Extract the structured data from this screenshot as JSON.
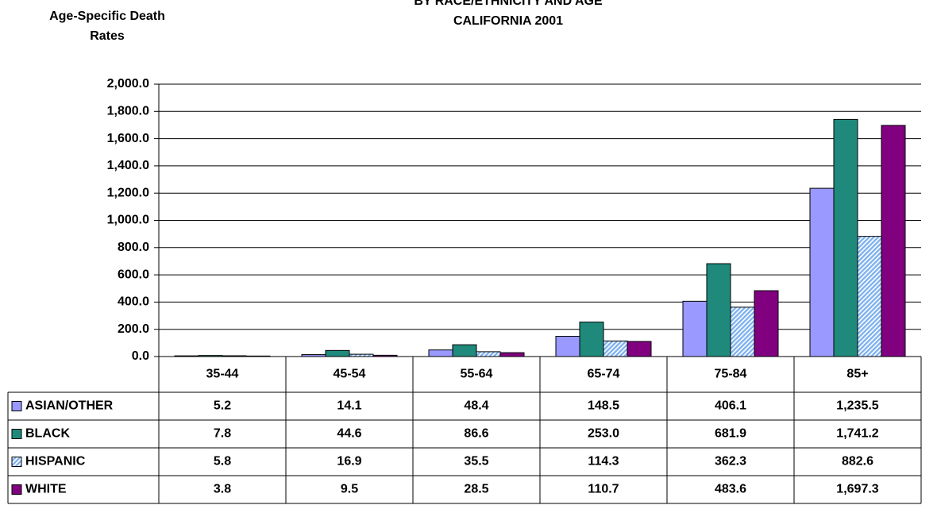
{
  "chart_data": {
    "type": "bar",
    "title": "BY RACE/ETHNICITY AND AGE",
    "subtitle": "CALIFORNIA 2001",
    "y_axis_label": "Age-Specific Death Rates",
    "categories": [
      "35-44",
      "45-54",
      "55-64",
      "65-74",
      "75-84",
      "85+"
    ],
    "series": [
      {
        "name": "ASIAN/OTHER",
        "color": "#9999ff",
        "values": [
          5.2,
          14.1,
          48.4,
          148.5,
          406.1,
          1235.5
        ],
        "value_labels": [
          "5.2",
          "14.1",
          "48.4",
          "148.5",
          "406.1",
          "1,235.5"
        ]
      },
      {
        "name": "BLACK",
        "color": "#1f8a7c",
        "values": [
          7.8,
          44.6,
          86.6,
          253.0,
          681.9,
          1741.2
        ],
        "value_labels": [
          "7.8",
          "44.6",
          "86.6",
          "253.0",
          "681.9",
          "1,741.2"
        ]
      },
      {
        "name": "HISPANIC",
        "color": "#7fb2f0",
        "pattern": "hatch",
        "values": [
          5.8,
          16.9,
          35.5,
          114.3,
          362.3,
          882.6
        ],
        "value_labels": [
          "5.8",
          "16.9",
          "35.5",
          "114.3",
          "362.3",
          "882.6"
        ]
      },
      {
        "name": "WHITE",
        "color": "#800080",
        "values": [
          3.8,
          9.5,
          28.5,
          110.7,
          483.6,
          1697.3
        ],
        "value_labels": [
          "3.8",
          "9.5",
          "28.5",
          "110.7",
          "483.6",
          "1,697.3"
        ]
      }
    ],
    "ylim": [
      0,
      2000
    ],
    "yticks": [
      {
        "value": 0,
        "label": "0.0"
      },
      {
        "value": 200,
        "label": "200.0"
      },
      {
        "value": 400,
        "label": "400.0"
      },
      {
        "value": 600,
        "label": "600.0"
      },
      {
        "value": 800,
        "label": "800.0"
      },
      {
        "value": 1000,
        "label": "1,000.0"
      },
      {
        "value": 1200,
        "label": "1,200.0"
      },
      {
        "value": 1400,
        "label": "1,400.0"
      },
      {
        "value": 1600,
        "label": "1,600.0"
      },
      {
        "value": 1800,
        "label": "1,800.0"
      },
      {
        "value": 2000,
        "label": "2,000.0"
      }
    ],
    "grid": true,
    "data_table": true
  }
}
